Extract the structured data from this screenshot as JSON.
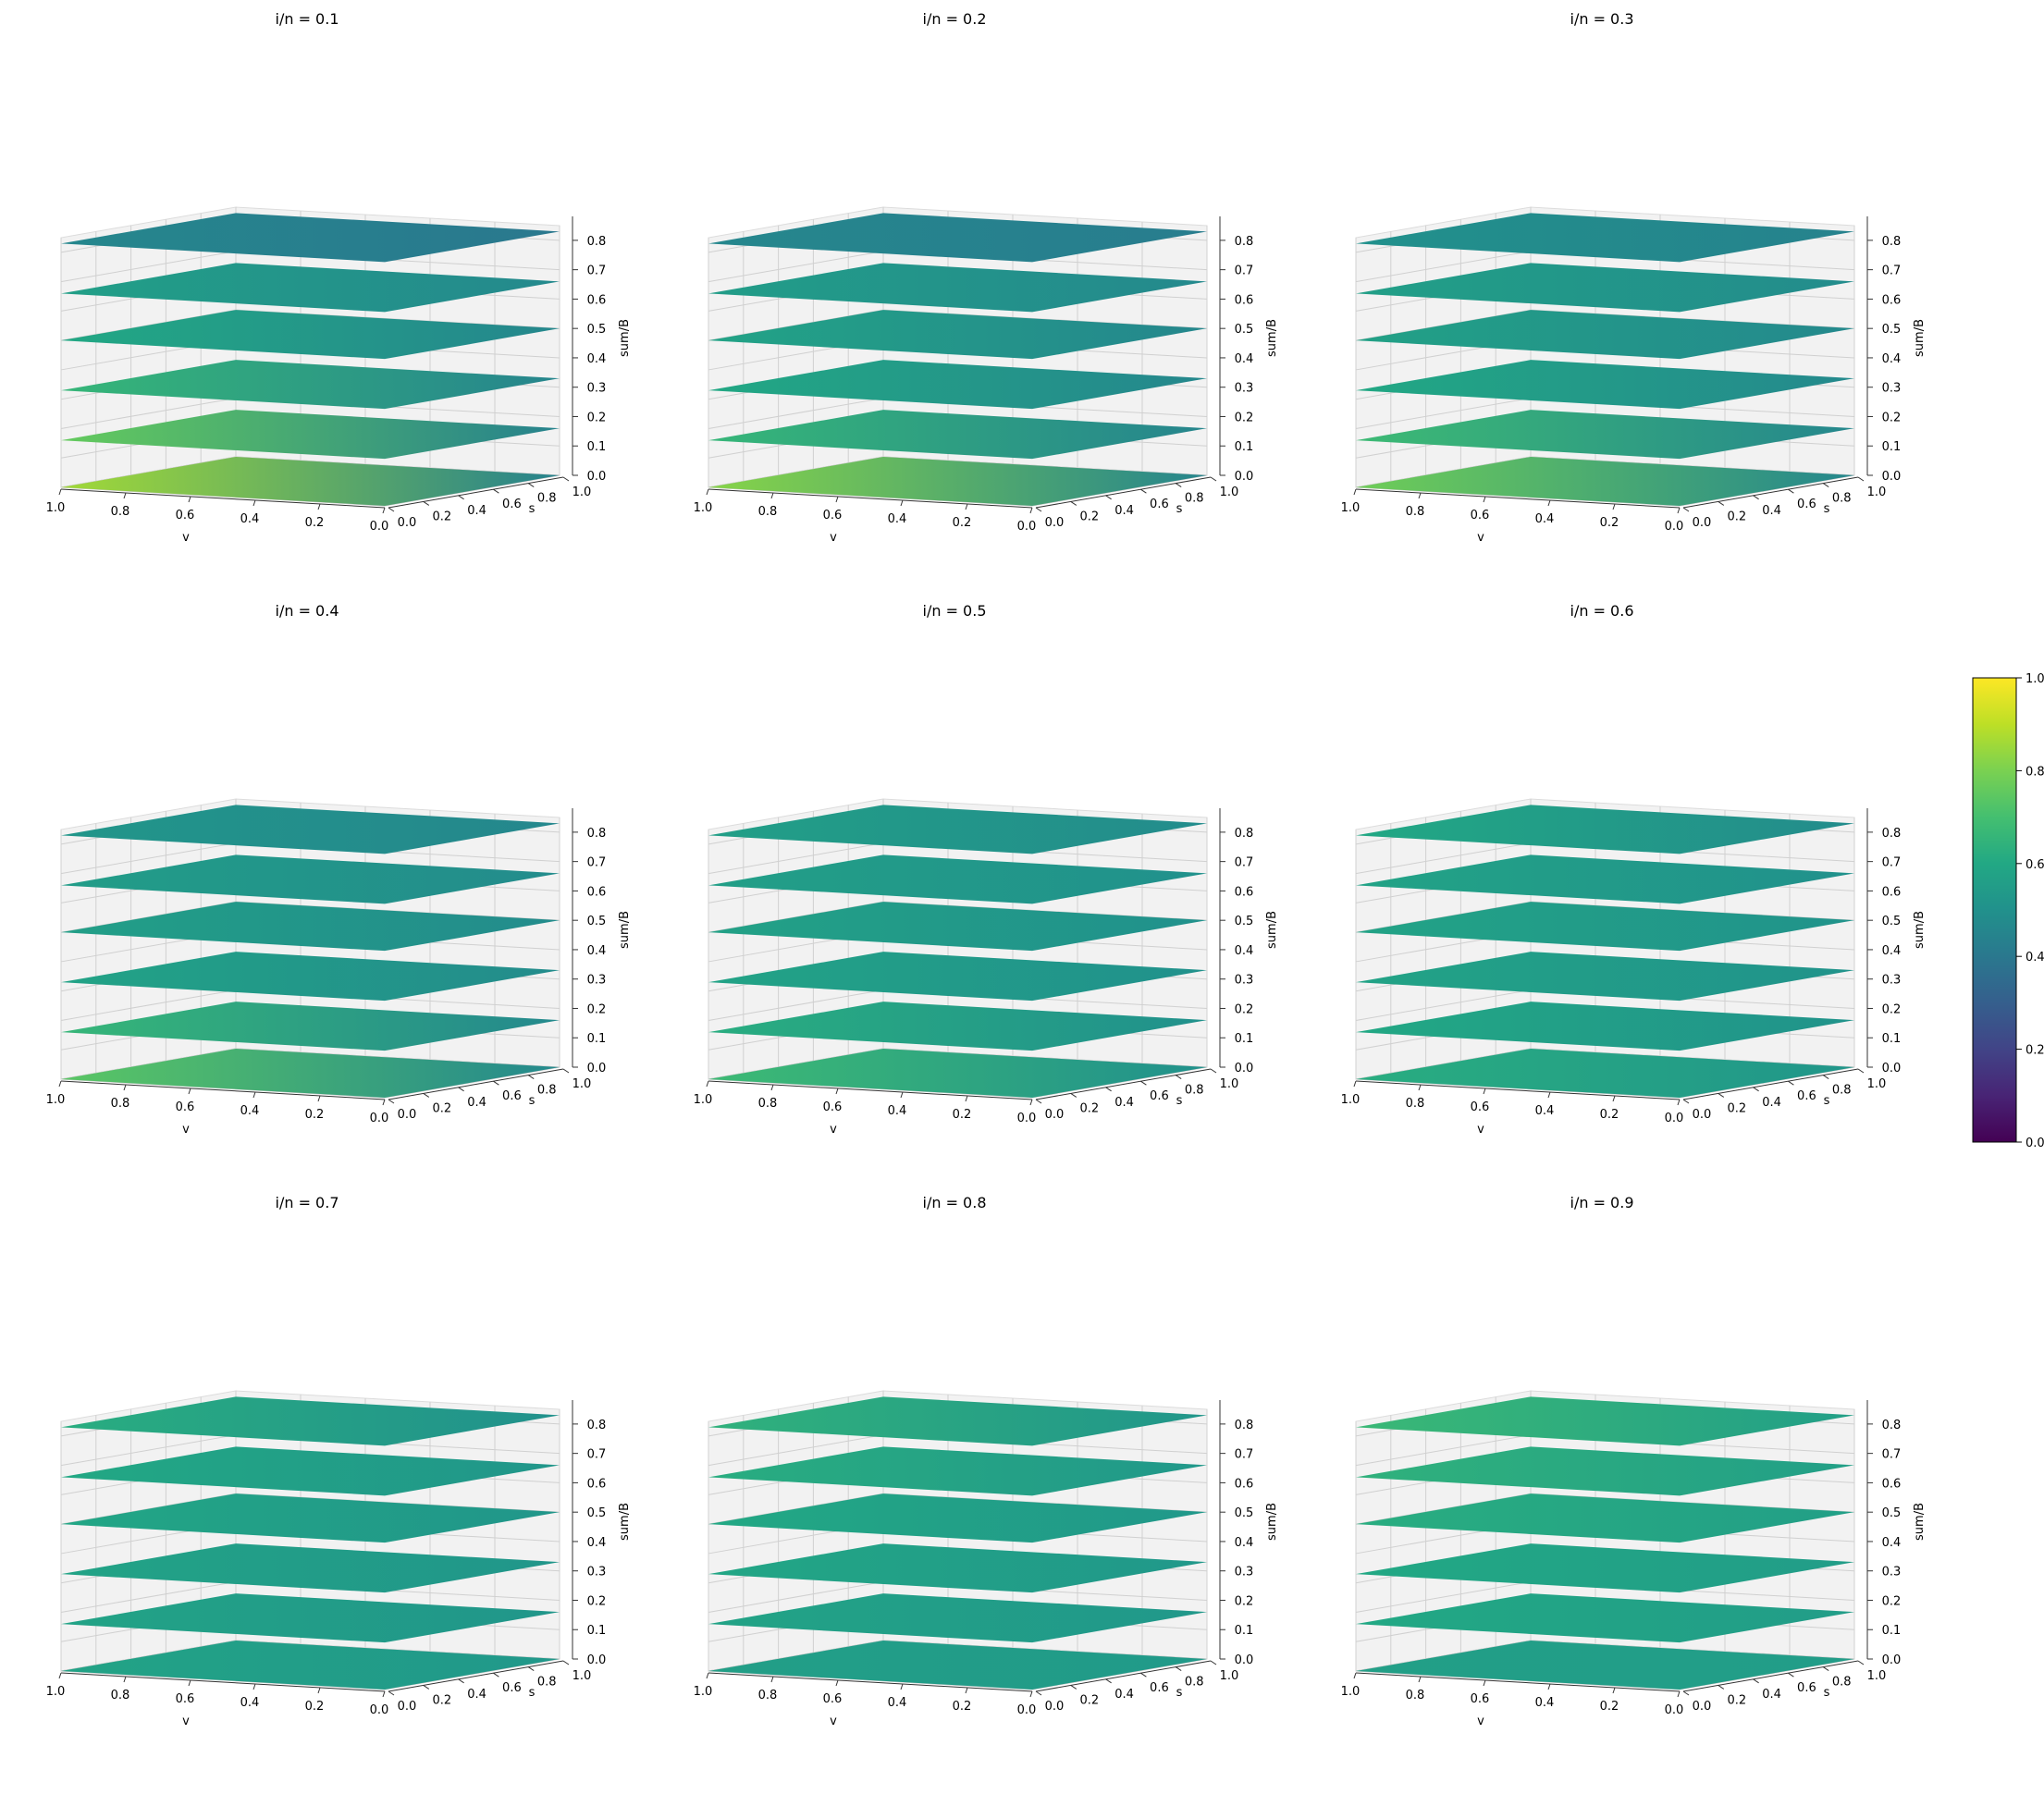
{
  "figure": {
    "colorbar": {
      "ticks": [
        "0.0",
        "0.2",
        "0.4",
        "0.6",
        "0.8",
        "1.0"
      ],
      "vmin": 0,
      "vmax": 1,
      "colormap": "viridis"
    }
  },
  "chart_data": [
    {
      "type": "surface3d",
      "title": "i/n = 0.1",
      "xlabel": "v",
      "ylabel": "s",
      "zlabel": "sum/B",
      "x_ticks": [
        "1.0",
        "0.8",
        "0.6",
        "0.4",
        "0.2",
        "0.0"
      ],
      "y_ticks": [
        "0.0",
        "0.2",
        "0.4",
        "0.6",
        "0.8",
        "1.0"
      ],
      "z_ticks": [
        "0.0",
        "0.1",
        "0.2",
        "0.3",
        "0.4",
        "0.5",
        "0.6",
        "0.7",
        "0.8"
      ],
      "xlim": [
        0,
        1
      ],
      "ylim": [
        0,
        1
      ],
      "zlim": [
        0,
        0.85
      ],
      "layers": [
        0.0,
        0.16,
        0.33,
        0.5,
        0.66,
        0.83
      ],
      "color_near_corner": [
        0.86,
        0.76,
        0.66,
        0.6,
        0.56,
        0.46
      ],
      "color_far_corner": [
        0.44,
        0.44,
        0.45,
        0.46,
        0.47,
        0.4
      ]
    },
    {
      "type": "surface3d",
      "title": "i/n = 0.2",
      "xlabel": "v",
      "ylabel": "s",
      "zlabel": "sum/B",
      "x_ticks": [
        "1.0",
        "0.8",
        "0.6",
        "0.4",
        "0.2",
        "0.0"
      ],
      "y_ticks": [
        "0.0",
        "0.2",
        "0.4",
        "0.6",
        "0.8",
        "1.0"
      ],
      "z_ticks": [
        "0.0",
        "0.1",
        "0.2",
        "0.3",
        "0.4",
        "0.5",
        "0.6",
        "0.7",
        "0.8"
      ],
      "xlim": [
        0,
        1
      ],
      "ylim": [
        0,
        1
      ],
      "zlim": [
        0,
        0.85
      ],
      "layers": [
        0.0,
        0.16,
        0.33,
        0.5,
        0.66,
        0.83
      ],
      "color_near_corner": [
        0.82,
        0.66,
        0.6,
        0.58,
        0.55,
        0.46
      ],
      "color_far_corner": [
        0.45,
        0.45,
        0.46,
        0.46,
        0.47,
        0.42
      ]
    },
    {
      "type": "surface3d",
      "title": "i/n = 0.3",
      "xlabel": "v",
      "ylabel": "s",
      "zlabel": "sum/B",
      "x_ticks": [
        "1.0",
        "0.8",
        "0.6",
        "0.4",
        "0.2",
        "0.0"
      ],
      "y_ticks": [
        "0.0",
        "0.2",
        "0.4",
        "0.6",
        "0.8",
        "1.0"
      ],
      "z_ticks": [
        "0.0",
        "0.1",
        "0.2",
        "0.3",
        "0.4",
        "0.5",
        "0.6",
        "0.7",
        "0.8"
      ],
      "xlim": [
        0,
        1
      ],
      "ylim": [
        0,
        1
      ],
      "zlim": [
        0,
        0.85
      ],
      "layers": [
        0.0,
        0.16,
        0.33,
        0.5,
        0.66,
        0.83
      ],
      "color_near_corner": [
        0.78,
        0.68,
        0.6,
        0.57,
        0.56,
        0.5
      ],
      "color_far_corner": [
        0.46,
        0.46,
        0.47,
        0.47,
        0.48,
        0.44
      ]
    },
    {
      "type": "surface3d",
      "title": "i/n = 0.4",
      "xlabel": "v",
      "ylabel": "s",
      "zlabel": "sum/B",
      "x_ticks": [
        "1.0",
        "0.8",
        "0.6",
        "0.4",
        "0.2",
        "0.0"
      ],
      "y_ticks": [
        "0.0",
        "0.2",
        "0.4",
        "0.6",
        "0.8",
        "1.0"
      ],
      "z_ticks": [
        "0.0",
        "0.1",
        "0.2",
        "0.3",
        "0.4",
        "0.5",
        "0.6",
        "0.7",
        "0.8"
      ],
      "xlim": [
        0,
        1
      ],
      "ylim": [
        0,
        1
      ],
      "zlim": [
        0,
        0.85
      ],
      "layers": [
        0.0,
        0.16,
        0.33,
        0.5,
        0.66,
        0.83
      ],
      "color_near_corner": [
        0.74,
        0.66,
        0.58,
        0.56,
        0.55,
        0.52
      ],
      "color_far_corner": [
        0.47,
        0.47,
        0.48,
        0.48,
        0.48,
        0.46
      ]
    },
    {
      "type": "surface3d",
      "title": "i/n = 0.5",
      "xlabel": "v",
      "ylabel": "s",
      "zlabel": "sum/B",
      "x_ticks": [
        "1.0",
        "0.8",
        "0.6",
        "0.4",
        "0.2",
        "0.0"
      ],
      "y_ticks": [
        "0.0",
        "0.2",
        "0.4",
        "0.6",
        "0.8",
        "1.0"
      ],
      "z_ticks": [
        "0.0",
        "0.1",
        "0.2",
        "0.3",
        "0.4",
        "0.5",
        "0.6",
        "0.7",
        "0.8"
      ],
      "xlim": [
        0,
        1
      ],
      "ylim": [
        0,
        1
      ],
      "zlim": [
        0,
        0.85
      ],
      "layers": [
        0.0,
        0.16,
        0.33,
        0.5,
        0.66,
        0.83
      ],
      "color_near_corner": [
        0.68,
        0.62,
        0.58,
        0.57,
        0.56,
        0.56
      ],
      "color_far_corner": [
        0.5,
        0.5,
        0.5,
        0.5,
        0.5,
        0.48
      ]
    },
    {
      "type": "surface3d",
      "title": "i/n = 0.6",
      "xlabel": "v",
      "ylabel": "s",
      "zlabel": "sum/B",
      "x_ticks": [
        "1.0",
        "0.8",
        "0.6",
        "0.4",
        "0.2",
        "0.0"
      ],
      "y_ticks": [
        "0.0",
        "0.2",
        "0.4",
        "0.6",
        "0.8",
        "1.0"
      ],
      "z_ticks": [
        "0.0",
        "0.1",
        "0.2",
        "0.3",
        "0.4",
        "0.5",
        "0.6",
        "0.7",
        "0.8"
      ],
      "xlim": [
        0,
        1
      ],
      "ylim": [
        0,
        1
      ],
      "zlim": [
        0,
        0.85
      ],
      "layers": [
        0.0,
        0.16,
        0.33,
        0.5,
        0.66,
        0.83
      ],
      "color_near_corner": [
        0.62,
        0.6,
        0.58,
        0.58,
        0.58,
        0.6
      ],
      "color_far_corner": [
        0.52,
        0.51,
        0.51,
        0.51,
        0.5,
        0.48
      ]
    },
    {
      "type": "surface3d",
      "title": "i/n = 0.7",
      "xlabel": "v",
      "ylabel": "s",
      "zlabel": "sum/B",
      "x_ticks": [
        "1.0",
        "0.8",
        "0.6",
        "0.4",
        "0.2",
        "0.0"
      ],
      "y_ticks": [
        "0.0",
        "0.2",
        "0.4",
        "0.6",
        "0.8",
        "1.0"
      ],
      "z_ticks": [
        "0.0",
        "0.1",
        "0.2",
        "0.3",
        "0.4",
        "0.5",
        "0.6",
        "0.7",
        "0.8"
      ],
      "xlim": [
        0,
        1
      ],
      "ylim": [
        0,
        1
      ],
      "zlim": [
        0,
        0.85
      ],
      "layers": [
        0.0,
        0.16,
        0.33,
        0.5,
        0.66,
        0.83
      ],
      "color_near_corner": [
        0.58,
        0.58,
        0.58,
        0.59,
        0.6,
        0.62
      ],
      "color_far_corner": [
        0.53,
        0.52,
        0.52,
        0.52,
        0.52,
        0.5
      ]
    },
    {
      "type": "surface3d",
      "title": "i/n = 0.8",
      "xlabel": "v",
      "ylabel": "s",
      "zlabel": "sum/B",
      "x_ticks": [
        "1.0",
        "0.8",
        "0.6",
        "0.4",
        "0.2",
        "0.0"
      ],
      "y_ticks": [
        "0.0",
        "0.2",
        "0.4",
        "0.6",
        "0.8",
        "1.0"
      ],
      "z_ticks": [
        "0.0",
        "0.1",
        "0.2",
        "0.3",
        "0.4",
        "0.5",
        "0.6",
        "0.7",
        "0.8"
      ],
      "xlim": [
        0,
        1
      ],
      "ylim": [
        0,
        1
      ],
      "zlim": [
        0,
        0.85
      ],
      "layers": [
        0.0,
        0.16,
        0.33,
        0.5,
        0.66,
        0.83
      ],
      "color_near_corner": [
        0.56,
        0.58,
        0.59,
        0.6,
        0.62,
        0.64
      ],
      "color_far_corner": [
        0.54,
        0.53,
        0.53,
        0.53,
        0.53,
        0.52
      ]
    },
    {
      "type": "surface3d",
      "title": "i/n = 0.9",
      "xlabel": "v",
      "ylabel": "s",
      "zlabel": "sum/B",
      "x_ticks": [
        "1.0",
        "0.8",
        "0.6",
        "0.4",
        "0.2",
        "0.0"
      ],
      "y_ticks": [
        "0.0",
        "0.2",
        "0.4",
        "0.6",
        "0.8",
        "1.0"
      ],
      "z_ticks": [
        "0.0",
        "0.1",
        "0.2",
        "0.3",
        "0.4",
        "0.5",
        "0.6",
        "0.7",
        "0.8"
      ],
      "xlim": [
        0,
        1
      ],
      "ylim": [
        0,
        1
      ],
      "zlim": [
        0,
        0.85
      ],
      "layers": [
        0.0,
        0.16,
        0.33,
        0.5,
        0.66,
        0.83
      ],
      "color_near_corner": [
        0.56,
        0.6,
        0.6,
        0.62,
        0.64,
        0.67
      ],
      "color_far_corner": [
        0.55,
        0.55,
        0.55,
        0.56,
        0.56,
        0.56
      ]
    }
  ]
}
